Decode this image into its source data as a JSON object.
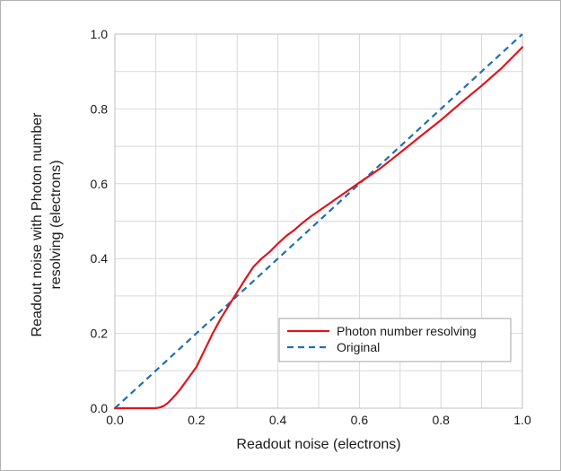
{
  "chart_data": {
    "type": "line",
    "xlabel": "Readout noise (electrons)",
    "ylabel": [
      "Readout noise with Photon number",
      "resolving (electrons)"
    ],
    "xlim": [
      0.0,
      1.0
    ],
    "ylim": [
      0.0,
      1.0
    ],
    "xticks": [
      "0.0",
      "0.2",
      "0.4",
      "0.6",
      "0.8",
      "1.0"
    ],
    "yticks": [
      "0.0",
      "0.2",
      "0.4",
      "0.6",
      "0.8",
      "1.0"
    ],
    "grid": true,
    "legend_position": "lower-right",
    "series": [
      {
        "name": "Photon number resolving",
        "color": "#e0141e",
        "style": "solid",
        "x": [
          0.0,
          0.05,
          0.1,
          0.11,
          0.12,
          0.13,
          0.14,
          0.15,
          0.16,
          0.17,
          0.18,
          0.19,
          0.2,
          0.22,
          0.24,
          0.26,
          0.28,
          0.3,
          0.32,
          0.34,
          0.36,
          0.38,
          0.4,
          0.42,
          0.44,
          0.46,
          0.48,
          0.5,
          0.55,
          0.6,
          0.65,
          0.7,
          0.75,
          0.8,
          0.85,
          0.9,
          0.95,
          1.0
        ],
        "y": [
          0.0,
          0.0,
          0.0,
          0.002,
          0.006,
          0.014,
          0.025,
          0.037,
          0.05,
          0.065,
          0.08,
          0.095,
          0.11,
          0.155,
          0.2,
          0.24,
          0.275,
          0.31,
          0.345,
          0.378,
          0.4,
          0.418,
          0.44,
          0.46,
          0.476,
          0.495,
          0.512,
          0.527,
          0.565,
          0.603,
          0.64,
          0.683,
          0.727,
          0.77,
          0.817,
          0.862,
          0.91,
          0.965
        ]
      },
      {
        "name": "Original",
        "color": "#1f6fb4",
        "style": "dashed",
        "x": [
          0.0,
          1.0
        ],
        "y": [
          0.0,
          1.0
        ]
      }
    ]
  }
}
